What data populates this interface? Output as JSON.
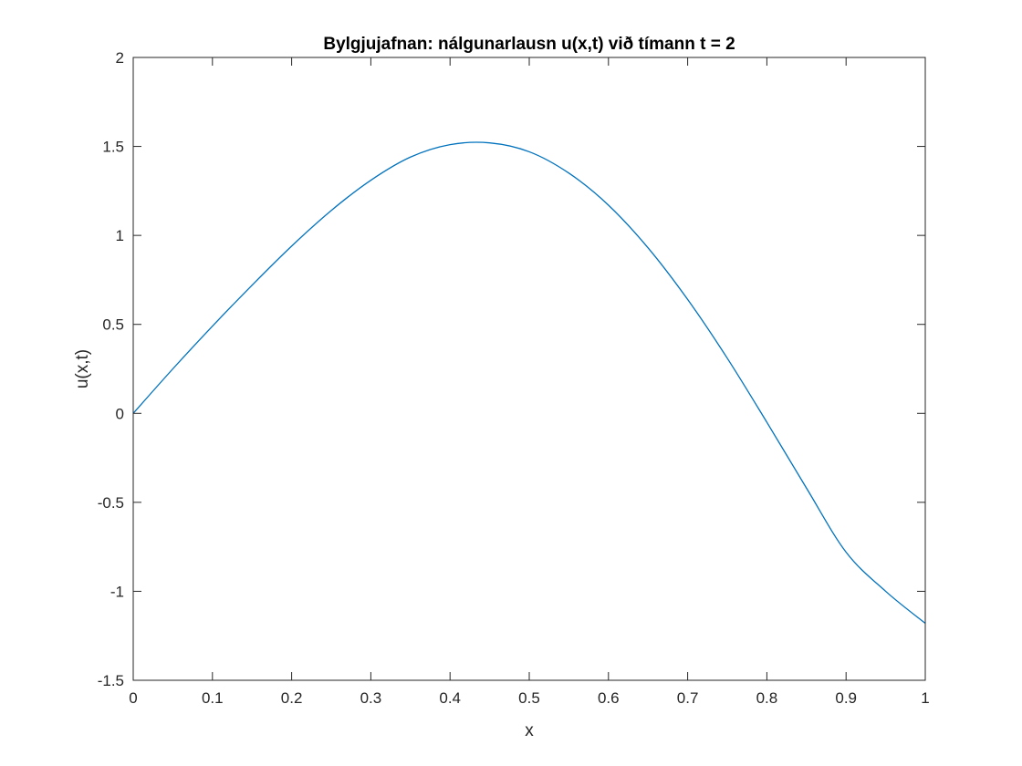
{
  "chart_data": {
    "type": "line",
    "title": "Bylgjujafnan: nálgunarlausn u(x,t) við tímann t = 2",
    "xlabel": "x",
    "ylabel": "u(x,t)",
    "xlim": [
      0,
      1
    ],
    "ylim": [
      -1.5,
      2
    ],
    "xticks": [
      0,
      0.1,
      0.2,
      0.3,
      0.4,
      0.5,
      0.6,
      0.7,
      0.8,
      0.9,
      1
    ],
    "xtick_labels": [
      "0",
      "0.1",
      "0.2",
      "0.3",
      "0.4",
      "0.5",
      "0.6",
      "0.7",
      "0.8",
      "0.9",
      "1"
    ],
    "yticks": [
      -1.5,
      -1,
      -0.5,
      0,
      0.5,
      1,
      1.5,
      2
    ],
    "ytick_labels": [
      "-1.5",
      "-1",
      "-0.5",
      "0",
      "0.5",
      "1",
      "1.5",
      "2"
    ],
    "grid": false,
    "box": true,
    "line_color": "#0072BD",
    "axis_color": "#262626",
    "series": [
      {
        "x": [
          0,
          0.05,
          0.1,
          0.15,
          0.2,
          0.25,
          0.3,
          0.35,
          0.4,
          0.45,
          0.5,
          0.55,
          0.6,
          0.65,
          0.7,
          0.75,
          0.8,
          0.85,
          0.9,
          0.95,
          1
        ],
        "values": [
          0,
          0.25,
          0.49,
          0.72,
          0.94,
          1.14,
          1.31,
          1.44,
          1.51,
          1.52,
          1.47,
          1.35,
          1.17,
          0.93,
          0.64,
          0.31,
          -0.05,
          -0.42,
          -0.78,
          -1.0,
          -1.18
        ]
      }
    ]
  }
}
